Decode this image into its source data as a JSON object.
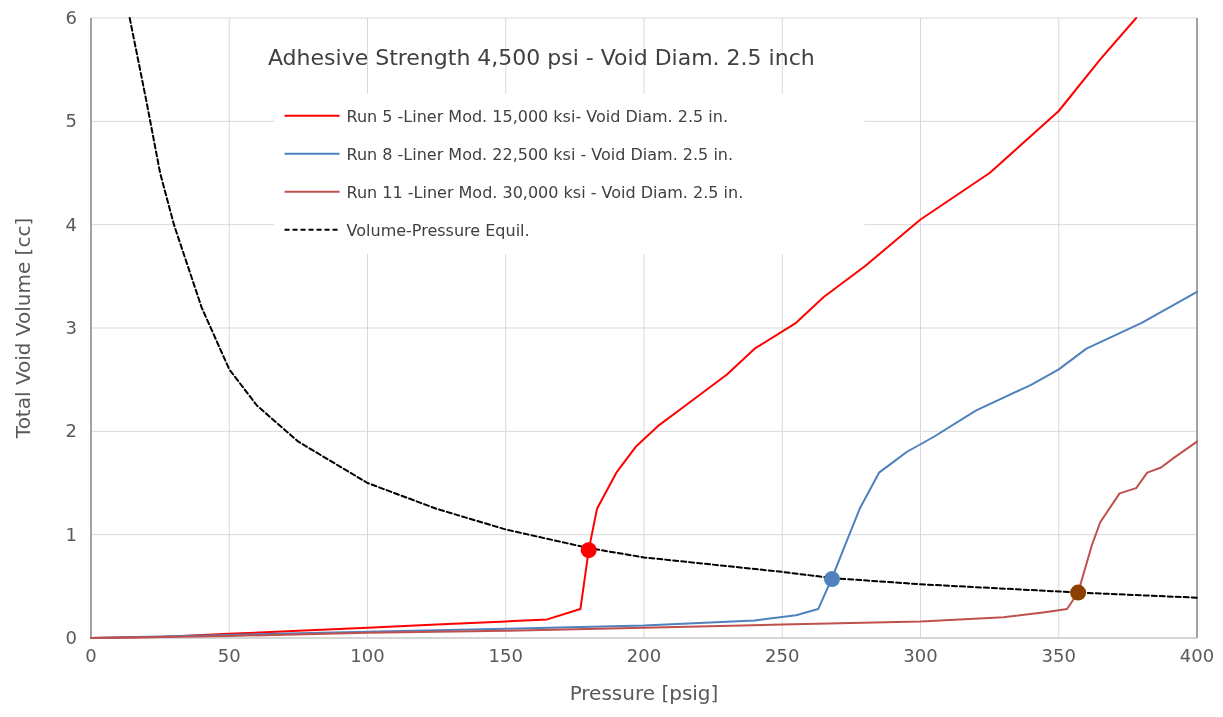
{
  "chart_data": {
    "type": "line",
    "title": "Adhesive Strength 4,500 psi - Void Diam. 2.5 inch",
    "xlabel": "Pressure [psig]",
    "ylabel": "Total Void Volume [cc]",
    "xlim": [
      0,
      400
    ],
    "ylim": [
      0,
      6
    ],
    "xticks": [
      0,
      50,
      100,
      150,
      200,
      250,
      300,
      350,
      400
    ],
    "yticks": [
      0,
      1,
      2,
      3,
      4,
      5,
      6
    ],
    "grid": true,
    "legend": "top",
    "marker": "none",
    "series": [
      {
        "name": "Run 5 -Liner Mod. 15,000 ksi- Void Diam. 2.5 in.",
        "color": "#ff0000",
        "x": [
          0,
          25,
          50,
          75,
          100,
          125,
          150,
          165,
          177,
          180,
          183,
          190,
          197,
          205,
          215,
          230,
          240,
          255,
          265,
          280,
          300,
          325,
          350,
          365,
          378
        ],
        "values": [
          0,
          0.01,
          0.04,
          0.07,
          0.1,
          0.13,
          0.16,
          0.18,
          0.28,
          0.85,
          1.25,
          1.6,
          1.85,
          2.05,
          2.25,
          2.55,
          2.8,
          3.05,
          3.3,
          3.6,
          4.05,
          4.5,
          5.1,
          5.6,
          6
        ]
      },
      {
        "name": "Run 8 -Liner Mod. 22,500 ksi - Void Diam. 2.5 in.",
        "color": "#4f81bd",
        "x": [
          0,
          50,
          100,
          150,
          200,
          240,
          255,
          263,
          268,
          272,
          278,
          285,
          290,
          295,
          305,
          320,
          340,
          350,
          360,
          380,
          390,
          400
        ],
        "values": [
          0,
          0.03,
          0.06,
          0.09,
          0.12,
          0.17,
          0.22,
          0.28,
          0.58,
          0.85,
          1.25,
          1.6,
          1.7,
          1.8,
          1.95,
          2.2,
          2.45,
          2.6,
          2.8,
          3.05,
          3.2,
          3.35
        ]
      },
      {
        "name": "Run 11 -Liner Mod. 30,000 ksi - Void Diam. 2.5 in.",
        "color": "#c0504d",
        "x": [
          0,
          50,
          100,
          150,
          200,
          250,
          300,
          330,
          345,
          353,
          357,
          362,
          365,
          372,
          378,
          382,
          387,
          392,
          400
        ],
        "values": [
          0,
          0.02,
          0.05,
          0.07,
          0.1,
          0.13,
          0.16,
          0.2,
          0.25,
          0.28,
          0.44,
          0.9,
          1.12,
          1.4,
          1.45,
          1.6,
          1.65,
          1.75,
          1.9
        ]
      },
      {
        "name": "Volume-Pressure Equil.",
        "color": "#000000",
        "line_style": "dashed",
        "x": [
          14,
          20,
          25,
          30,
          40,
          50,
          60,
          75,
          100,
          125,
          150,
          180,
          200,
          250,
          268,
          300,
          350,
          357,
          400
        ],
        "values": [
          6,
          5.2,
          4.5,
          4.0,
          3.2,
          2.6,
          2.25,
          1.9,
          1.5,
          1.25,
          1.05,
          0.87,
          0.78,
          0.64,
          0.58,
          0.52,
          0.45,
          0.44,
          0.39
        ]
      },
      {
        "type": "scatter",
        "marker": "circle",
        "x": [
          180,
          268,
          357
        ],
        "values": [
          0.85,
          0.57,
          0.44
        ],
        "colors": [
          "#ff0000",
          "#4f81bd",
          "#8b4000"
        ]
      }
    ]
  }
}
